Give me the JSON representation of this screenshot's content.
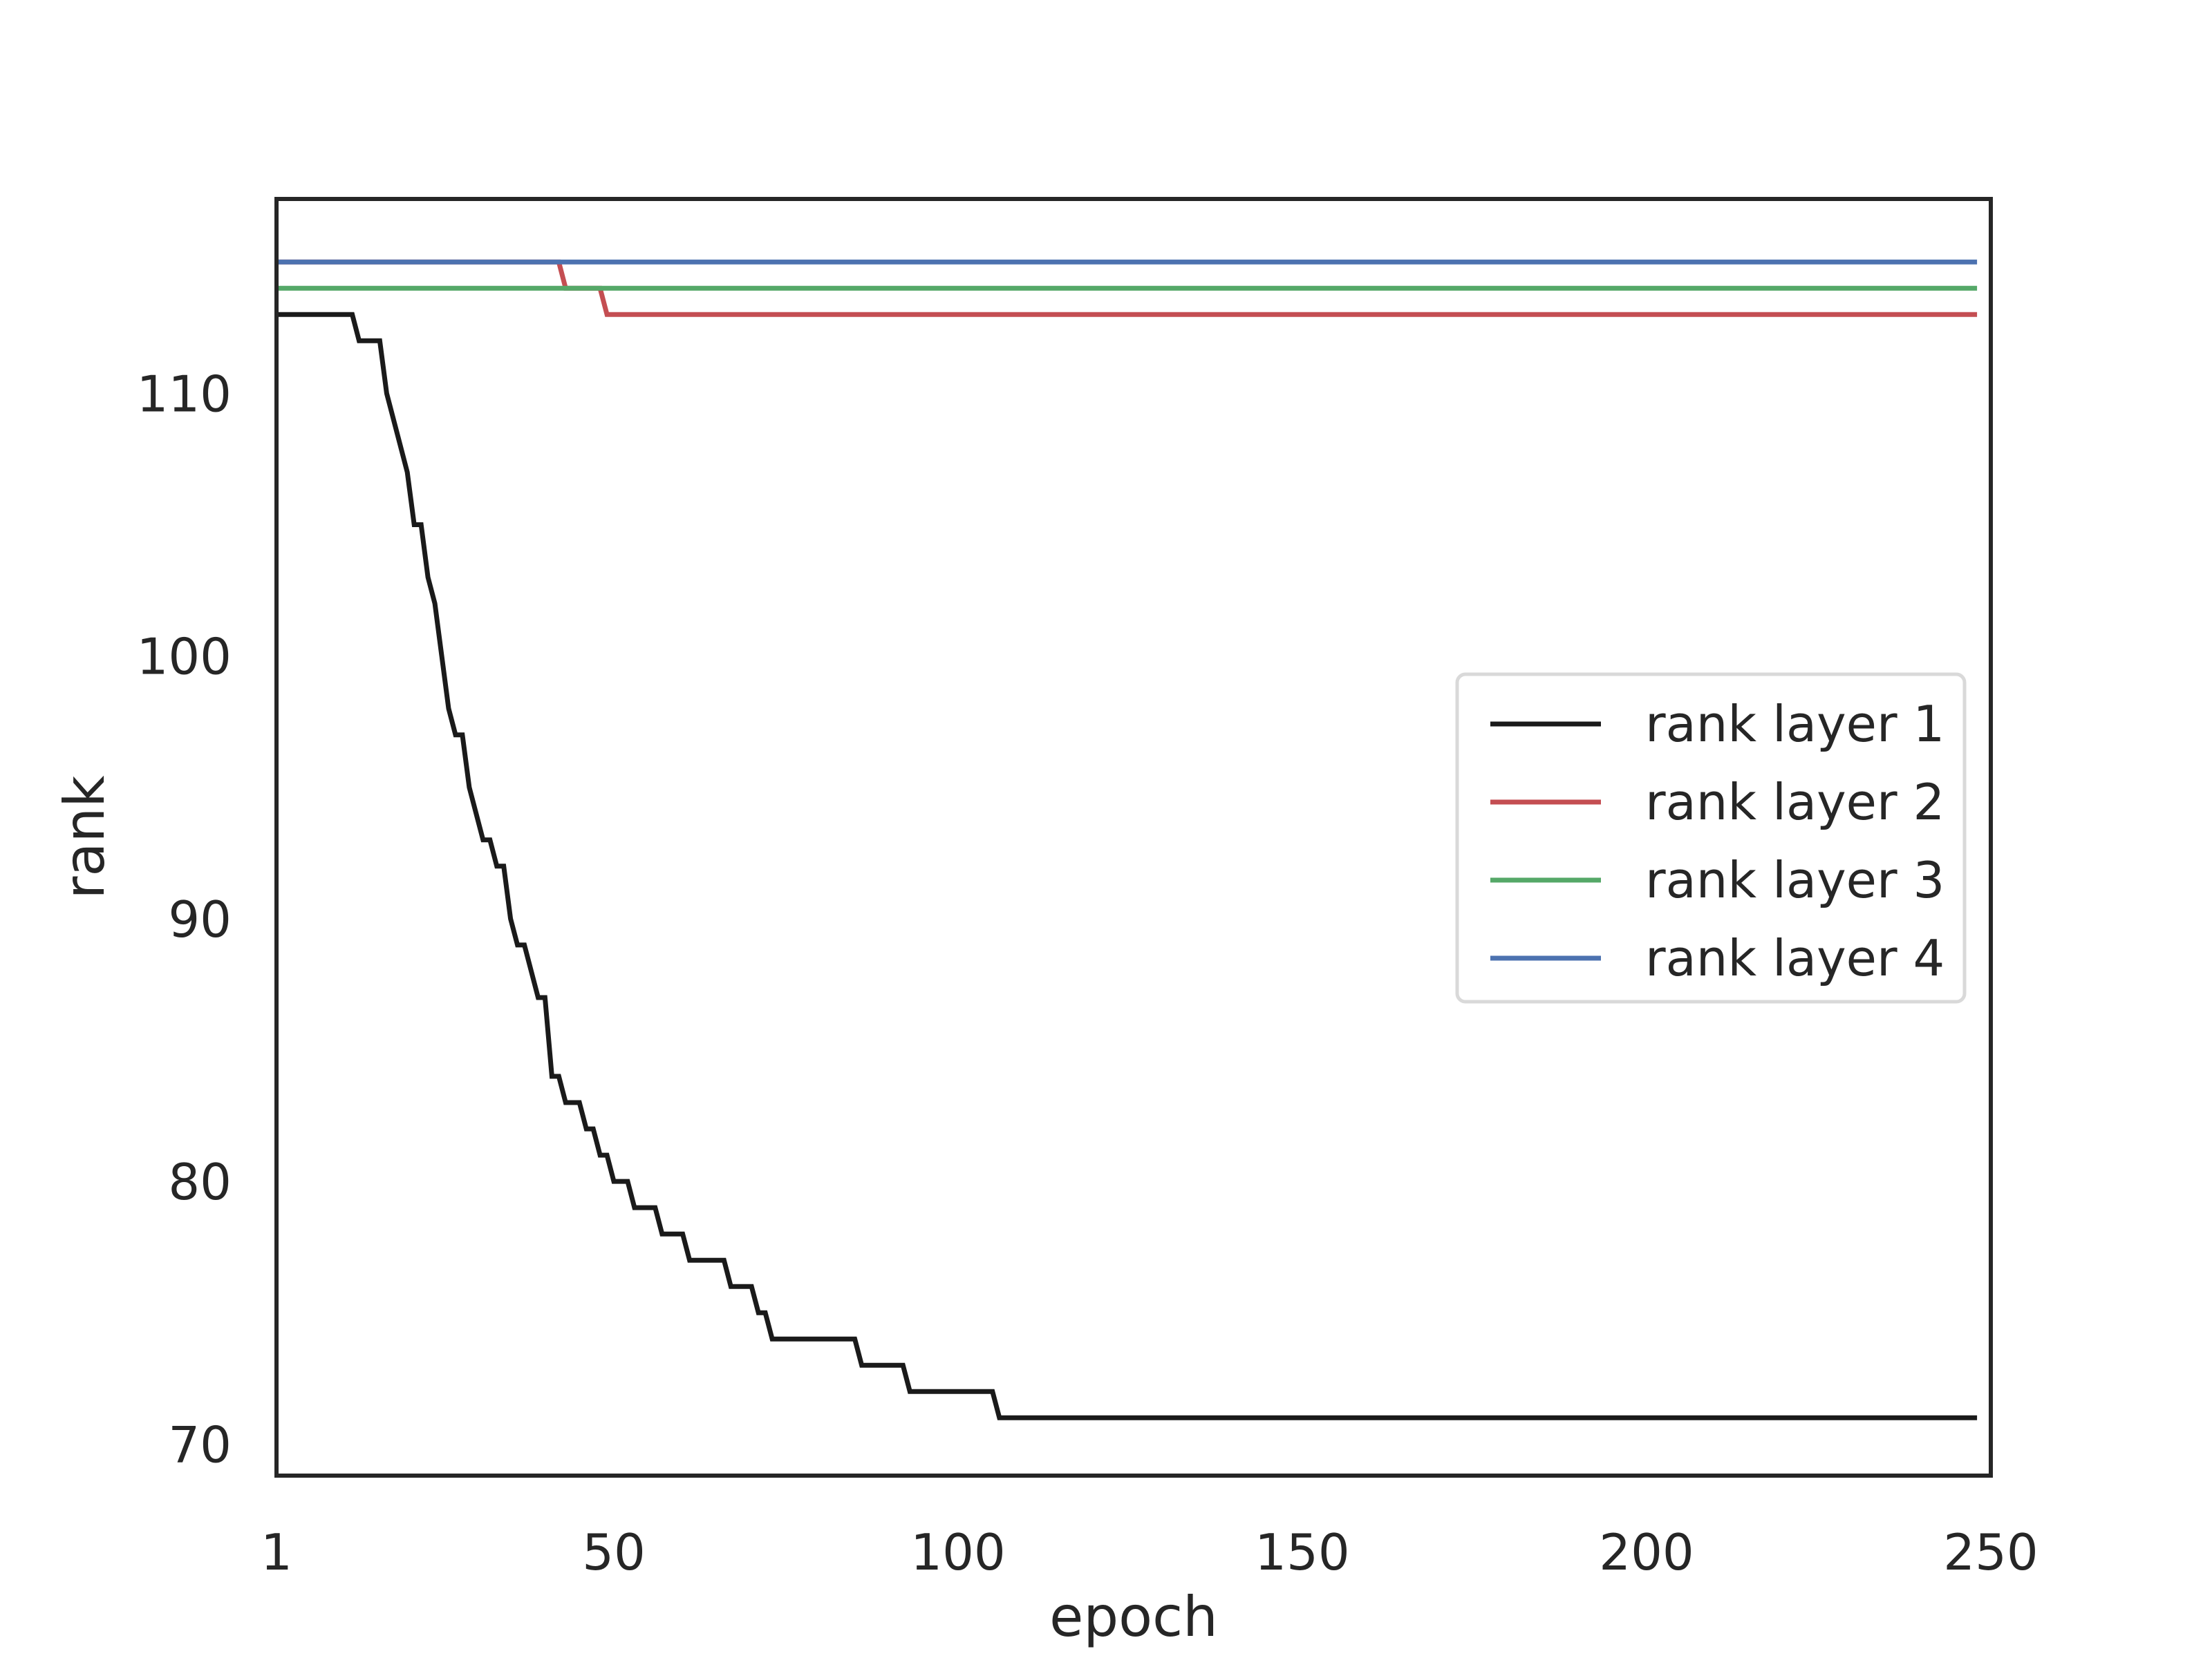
{
  "chart_data": {
    "type": "line",
    "title": "",
    "xlabel": "epoch",
    "ylabel": "rank",
    "xlim": [
      1,
      250
    ],
    "ylim": [
      68.8,
      117.4
    ],
    "xticks": [
      1,
      50,
      100,
      150,
      200,
      250
    ],
    "xtick_labels": [
      "1",
      "50",
      "100",
      "150",
      "200",
      "250"
    ],
    "yticks": [
      70,
      80,
      90,
      100,
      110
    ],
    "ytick_labels": [
      "70",
      "80",
      "90",
      "100",
      "110"
    ],
    "grid": false,
    "legend_position": "center-right",
    "series": [
      {
        "name": "rank layer 1",
        "color": "#1a1a1a",
        "points": [
          [
            1,
            113
          ],
          [
            12,
            113
          ],
          [
            13,
            112
          ],
          [
            16,
            112
          ],
          [
            17,
            110
          ],
          [
            20,
            107
          ],
          [
            21,
            105
          ],
          [
            22,
            105
          ],
          [
            23,
            103
          ],
          [
            24,
            102
          ],
          [
            26,
            98
          ],
          [
            27,
            97
          ],
          [
            28,
            97
          ],
          [
            29,
            95
          ],
          [
            31,
            93
          ],
          [
            32,
            93
          ],
          [
            33,
            92
          ],
          [
            34,
            92
          ],
          [
            35,
            90
          ],
          [
            36,
            89
          ],
          [
            37,
            89
          ],
          [
            39,
            87
          ],
          [
            40,
            87
          ],
          [
            41,
            84
          ],
          [
            42,
            84
          ],
          [
            43,
            83
          ],
          [
            45,
            83
          ],
          [
            46,
            82
          ],
          [
            47,
            82
          ],
          [
            48,
            81
          ],
          [
            49,
            81
          ],
          [
            50,
            80
          ],
          [
            52,
            80
          ],
          [
            53,
            79
          ],
          [
            56,
            79
          ],
          [
            57,
            78
          ],
          [
            60,
            78
          ],
          [
            61,
            77
          ],
          [
            66,
            77
          ],
          [
            67,
            76
          ],
          [
            70,
            76
          ],
          [
            71,
            75
          ],
          [
            72,
            75
          ],
          [
            73,
            74
          ],
          [
            85,
            74
          ],
          [
            86,
            73
          ],
          [
            92,
            73
          ],
          [
            93,
            72
          ],
          [
            105,
            72
          ],
          [
            106,
            71
          ],
          [
            248,
            71
          ]
        ]
      },
      {
        "name": "rank layer 2",
        "color": "#c44e52",
        "points": [
          [
            1,
            115
          ],
          [
            42,
            115
          ],
          [
            43,
            114
          ],
          [
            48,
            114
          ],
          [
            49,
            113
          ],
          [
            248,
            113
          ]
        ]
      },
      {
        "name": "rank layer 3",
        "color": "#55a868",
        "points": [
          [
            1,
            114
          ],
          [
            248,
            114
          ]
        ]
      },
      {
        "name": "rank layer 4",
        "color": "#4c72b0",
        "points": [
          [
            1,
            115
          ],
          [
            248,
            115
          ]
        ]
      }
    ]
  }
}
